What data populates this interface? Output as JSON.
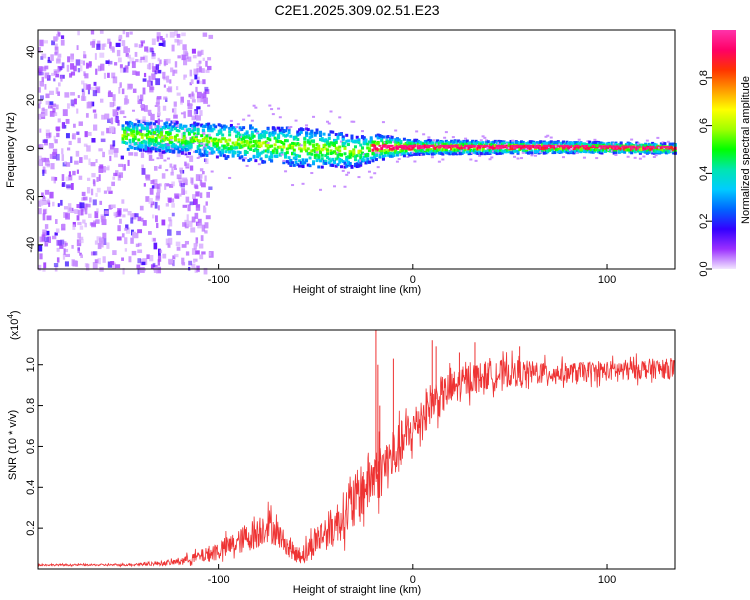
{
  "chart_data": [
    {
      "type": "heatmap",
      "title": "C2E1.2025.309.02.51.E23",
      "xlabel": "Height of straight line (km)",
      "ylabel": "Frequency (Hz)",
      "xlim": [
        -193,
        135
      ],
      "ylim": [
        -50,
        49
      ],
      "xticks": [
        -100,
        0,
        100
      ],
      "xtick_labels": [
        "-100",
        "0",
        "100"
      ],
      "yticks": [
        40,
        20,
        0,
        -20,
        -40
      ],
      "ytick_labels": [
        "40",
        "20",
        "0",
        "-20",
        "-40"
      ],
      "colorbar": {
        "label": "Normalized spectral amplitude",
        "range": [
          0,
          1
        ],
        "ticks": [
          0.0,
          0.2,
          0.4,
          0.6,
          0.8
        ],
        "tick_labels": [
          "0.0",
          "0.2",
          "0.4",
          "0.6",
          "0.8"
        ],
        "colors": [
          "#f2e6ff",
          "#9b30ff",
          "#3300ff",
          "#0066ff",
          "#00ccff",
          "#00e6b0",
          "#00ff00",
          "#a0ff00",
          "#ffff00",
          "#ff9900",
          "#ff3300",
          "#ff0066",
          "#ff33aa"
        ]
      },
      "features": {
        "noise_region_x": [
          -193,
          -115
        ],
        "band_center_hz": [
          [
            -150,
            6
          ],
          [
            -120,
            5
          ],
          [
            -90,
            3
          ],
          [
            -60,
            1
          ],
          [
            -40,
            0
          ],
          [
            -30,
            -1
          ],
          [
            -20,
            1
          ],
          [
            0,
            1
          ],
          [
            40,
            1
          ],
          [
            80,
            1
          ],
          [
            135,
            0.5
          ]
        ],
        "band_halfwidth_hz": [
          [
            -150,
            6
          ],
          [
            -100,
            7
          ],
          [
            -50,
            8
          ],
          [
            -25,
            6
          ],
          [
            0,
            3
          ],
          [
            50,
            2.5
          ],
          [
            135,
            2
          ]
        ]
      }
    },
    {
      "type": "line",
      "xlabel": "Height of straight line (km)",
      "ylabel": "SNR (10 * v/v)",
      "y_multiplier": "(x10",
      "y_exponent": "4",
      "xlim": [
        -193,
        135
      ],
      "ylim": [
        0,
        1.17
      ],
      "xticks": [
        -100,
        0,
        100
      ],
      "xtick_labels": [
        "-100",
        "0",
        "100"
      ],
      "yticks": [
        1.0,
        0.8,
        0.6,
        0.4,
        0.2
      ],
      "ytick_labels": [
        "1.0",
        "0.8",
        "0.6",
        "0.4",
        "0.2"
      ],
      "color": "#ee3333",
      "envelope": {
        "x": [
          -193,
          -150,
          -125,
          -110,
          -100,
          -90,
          -80,
          -75,
          -70,
          -65,
          -60,
          -55,
          -50,
          -40,
          -30,
          -25,
          -20,
          -15,
          -10,
          -5,
          0,
          5,
          10,
          20,
          30,
          40,
          50,
          60,
          80,
          100,
          120,
          135
        ],
        "mean": [
          0.02,
          0.02,
          0.03,
          0.06,
          0.09,
          0.13,
          0.18,
          0.22,
          0.18,
          0.12,
          0.07,
          0.08,
          0.14,
          0.22,
          0.32,
          0.4,
          0.46,
          0.5,
          0.55,
          0.62,
          0.68,
          0.76,
          0.82,
          0.88,
          0.93,
          0.95,
          0.96,
          0.96,
          0.96,
          0.97,
          0.98,
          0.98
        ],
        "spread": [
          0.004,
          0.005,
          0.012,
          0.03,
          0.05,
          0.06,
          0.08,
          0.09,
          0.07,
          0.05,
          0.04,
          0.06,
          0.08,
          0.1,
          0.14,
          0.15,
          0.15,
          0.14,
          0.13,
          0.12,
          0.11,
          0.11,
          0.1,
          0.09,
          0.08,
          0.07,
          0.07,
          0.06,
          0.05,
          0.05,
          0.05,
          0.05
        ]
      },
      "spikes": [
        [
          -19,
          1.17
        ],
        [
          -18,
          1.0
        ],
        [
          -17,
          0.8
        ],
        [
          -10,
          1.03
        ],
        [
          10,
          1.12
        ],
        [
          12,
          1.09
        ],
        [
          24,
          1.06
        ],
        [
          32,
          1.11
        ],
        [
          55,
          1.09
        ]
      ]
    }
  ]
}
